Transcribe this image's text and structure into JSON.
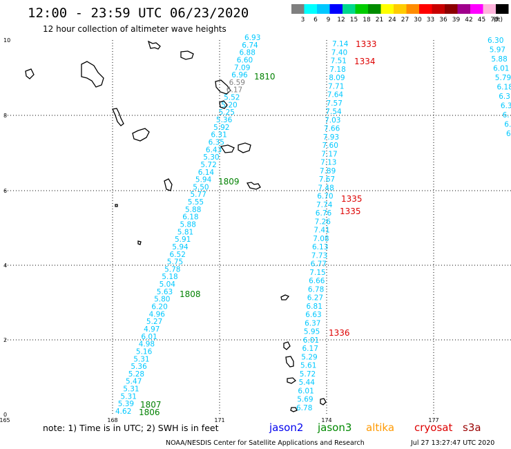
{
  "header": {
    "title": "12:00 - 23:59 UTC 06/23/2020",
    "subtitle": "12 hour collection of altimeter wave heights"
  },
  "legend": {
    "unit": "(ft)",
    "bins": [
      {
        "label": "3",
        "color": "#7f7f7f"
      },
      {
        "label": "6",
        "color": "#00ffff"
      },
      {
        "label": "9",
        "color": "#00c8ff"
      },
      {
        "label": "12",
        "color": "#0000ff"
      },
      {
        "label": "15",
        "color": "#00d88c"
      },
      {
        "label": "18",
        "color": "#00cc00"
      },
      {
        "label": "21",
        "color": "#008c00"
      },
      {
        "label": "24",
        "color": "#ffff00"
      },
      {
        "label": "27",
        "color": "#ffcc00"
      },
      {
        "label": "30",
        "color": "#ff8c00"
      },
      {
        "label": "33",
        "color": "#ff0000"
      },
      {
        "label": "36",
        "color": "#c80000"
      },
      {
        "label": "39",
        "color": "#8c0000"
      },
      {
        "label": "42",
        "color": "#a0008c"
      },
      {
        "label": "45",
        "color": "#ff00ff"
      },
      {
        "label": "70",
        "color": "#ffb4dc"
      },
      {
        "label": "",
        "color": "#000000"
      }
    ]
  },
  "axes": {
    "x_ticks": [
      "165",
      "168",
      "171",
      "174",
      "177"
    ],
    "y_ticks": [
      "0",
      "2",
      "4",
      "6",
      "8",
      "10"
    ],
    "x_range": [
      165,
      180
    ],
    "y_range": [
      0,
      10
    ]
  },
  "tracks": [
    {
      "id": "track-a",
      "color": "#00c8ff",
      "values": [
        "4.62",
        "5.39",
        "5.31",
        "5.31",
        "5.47",
        "5.28",
        "5.36",
        "5.31",
        "5.16",
        "4.98",
        "6.01",
        "4.97",
        "5.27",
        "4.96",
        "6.20",
        "5.80",
        "5.63",
        "5.04",
        "5.18",
        "5.78",
        "5.75",
        "6.52",
        "5.94",
        "5.91",
        "5.81",
        "5.88",
        "6.18",
        "5.88",
        "5.55",
        "5.77",
        "5.50",
        "5.94",
        "6.14",
        "5.72",
        "5.30",
        "6.43",
        "6.35",
        "6.31",
        "5.92",
        "5.36",
        "5.25",
        "5.20",
        "5.52",
        "6.17",
        "6.59",
        "6.96",
        "7.09",
        "6.60",
        "6.88",
        "6.74",
        "6.93"
      ],
      "gray_values": [
        "6.17",
        "6.59"
      ]
    },
    {
      "id": "track-b",
      "color": "#00c8ff",
      "values": [
        "6.78",
        "5.69",
        "6.01",
        "5.44",
        "5.72",
        "5.61",
        "5.29",
        "6.17",
        "6.01",
        "5.95",
        "6.37",
        "6.63",
        "6.81",
        "6.27",
        "6.78",
        "6.66",
        "7.15",
        "6.77",
        "7.73",
        "6.13",
        "7.08",
        "7.41",
        "7.26",
        "6.76",
        "7.74",
        "6.70",
        "7.48",
        "7.67",
        "7.89",
        "7.13",
        "7.17",
        "7.60",
        "7.93",
        "7.66",
        "7.03",
        "7.54",
        "7.57",
        "7.64",
        "7.71",
        "8.09",
        "7.18",
        "7.51",
        "7.40",
        "7.14"
      ]
    },
    {
      "id": "track-c",
      "color": "#00c8ff",
      "values": [
        "6.30",
        "5.97",
        "5.88",
        "6.01",
        "5.79",
        "6.18",
        "6.3",
        "6.3",
        "6.",
        "6.",
        "6"
      ]
    }
  ],
  "pass_labels": [
    {
      "text": "1806",
      "color": "#008000"
    },
    {
      "text": "1807",
      "color": "#008000"
    },
    {
      "text": "1808",
      "color": "#008000"
    },
    {
      "text": "1809",
      "color": "#008000"
    },
    {
      "text": "1810",
      "color": "#008000"
    },
    {
      "text": "1333",
      "color": "#dd0000"
    },
    {
      "text": "1334",
      "color": "#dd0000"
    },
    {
      "text": "1335",
      "color": "#dd0000"
    },
    {
      "text": "1335",
      "color": "#dd0000"
    },
    {
      "text": "1336",
      "color": "#dd0000"
    }
  ],
  "footer": {
    "note": "note: 1) Time is in UTC; 2) SWH is in feet",
    "satellites": [
      {
        "name": "jason2",
        "color": "#0000ee"
      },
      {
        "name": "jason3",
        "color": "#008800"
      },
      {
        "name": "altika",
        "color": "#ff9900"
      },
      {
        "name": "cryosat",
        "color": "#dd0000"
      },
      {
        "name": "s3a",
        "color": "#990000"
      }
    ],
    "credit": "NOAA/NESDIS Center for Satellite Applications and Research",
    "timestamp": "Jul 27 13:27:47 UTC 2020"
  }
}
